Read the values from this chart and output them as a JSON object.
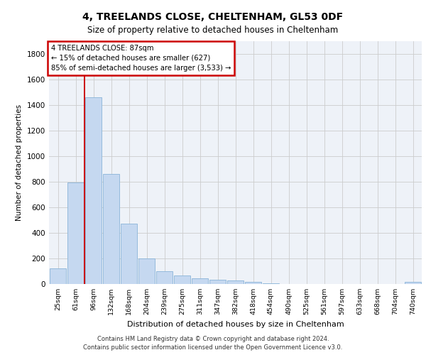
{
  "title": "4, TREELANDS CLOSE, CHELTENHAM, GL53 0DF",
  "subtitle": "Size of property relative to detached houses in Cheltenham",
  "xlabel": "Distribution of detached houses by size in Cheltenham",
  "ylabel": "Number of detached properties",
  "categories": [
    "25sqm",
    "61sqm",
    "96sqm",
    "132sqm",
    "168sqm",
    "204sqm",
    "239sqm",
    "275sqm",
    "311sqm",
    "347sqm",
    "382sqm",
    "418sqm",
    "454sqm",
    "490sqm",
    "525sqm",
    "561sqm",
    "597sqm",
    "633sqm",
    "668sqm",
    "704sqm",
    "740sqm"
  ],
  "values": [
    120,
    795,
    1460,
    860,
    470,
    200,
    100,
    65,
    45,
    35,
    30,
    15,
    5,
    2,
    2,
    1,
    1,
    0,
    0,
    0,
    15
  ],
  "bar_color": "#c5d8f0",
  "bar_edge_color": "#8ab4d8",
  "grid_color": "#cccccc",
  "bg_color": "#eef2f8",
  "vline_color": "#cc0000",
  "annotation_box_text_line1": "4 TREELANDS CLOSE: 87sqm",
  "annotation_box_text_line2": "← 15% of detached houses are smaller (627)",
  "annotation_box_text_line3": "85% of semi-detached houses are larger (3,533) →",
  "annotation_box_color": "#cc0000",
  "footer_line1": "Contains HM Land Registry data © Crown copyright and database right 2024.",
  "footer_line2": "Contains public sector information licensed under the Open Government Licence v3.0.",
  "ylim": [
    0,
    1900
  ],
  "yticks": [
    0,
    200,
    400,
    600,
    800,
    1000,
    1200,
    1400,
    1600,
    1800
  ]
}
